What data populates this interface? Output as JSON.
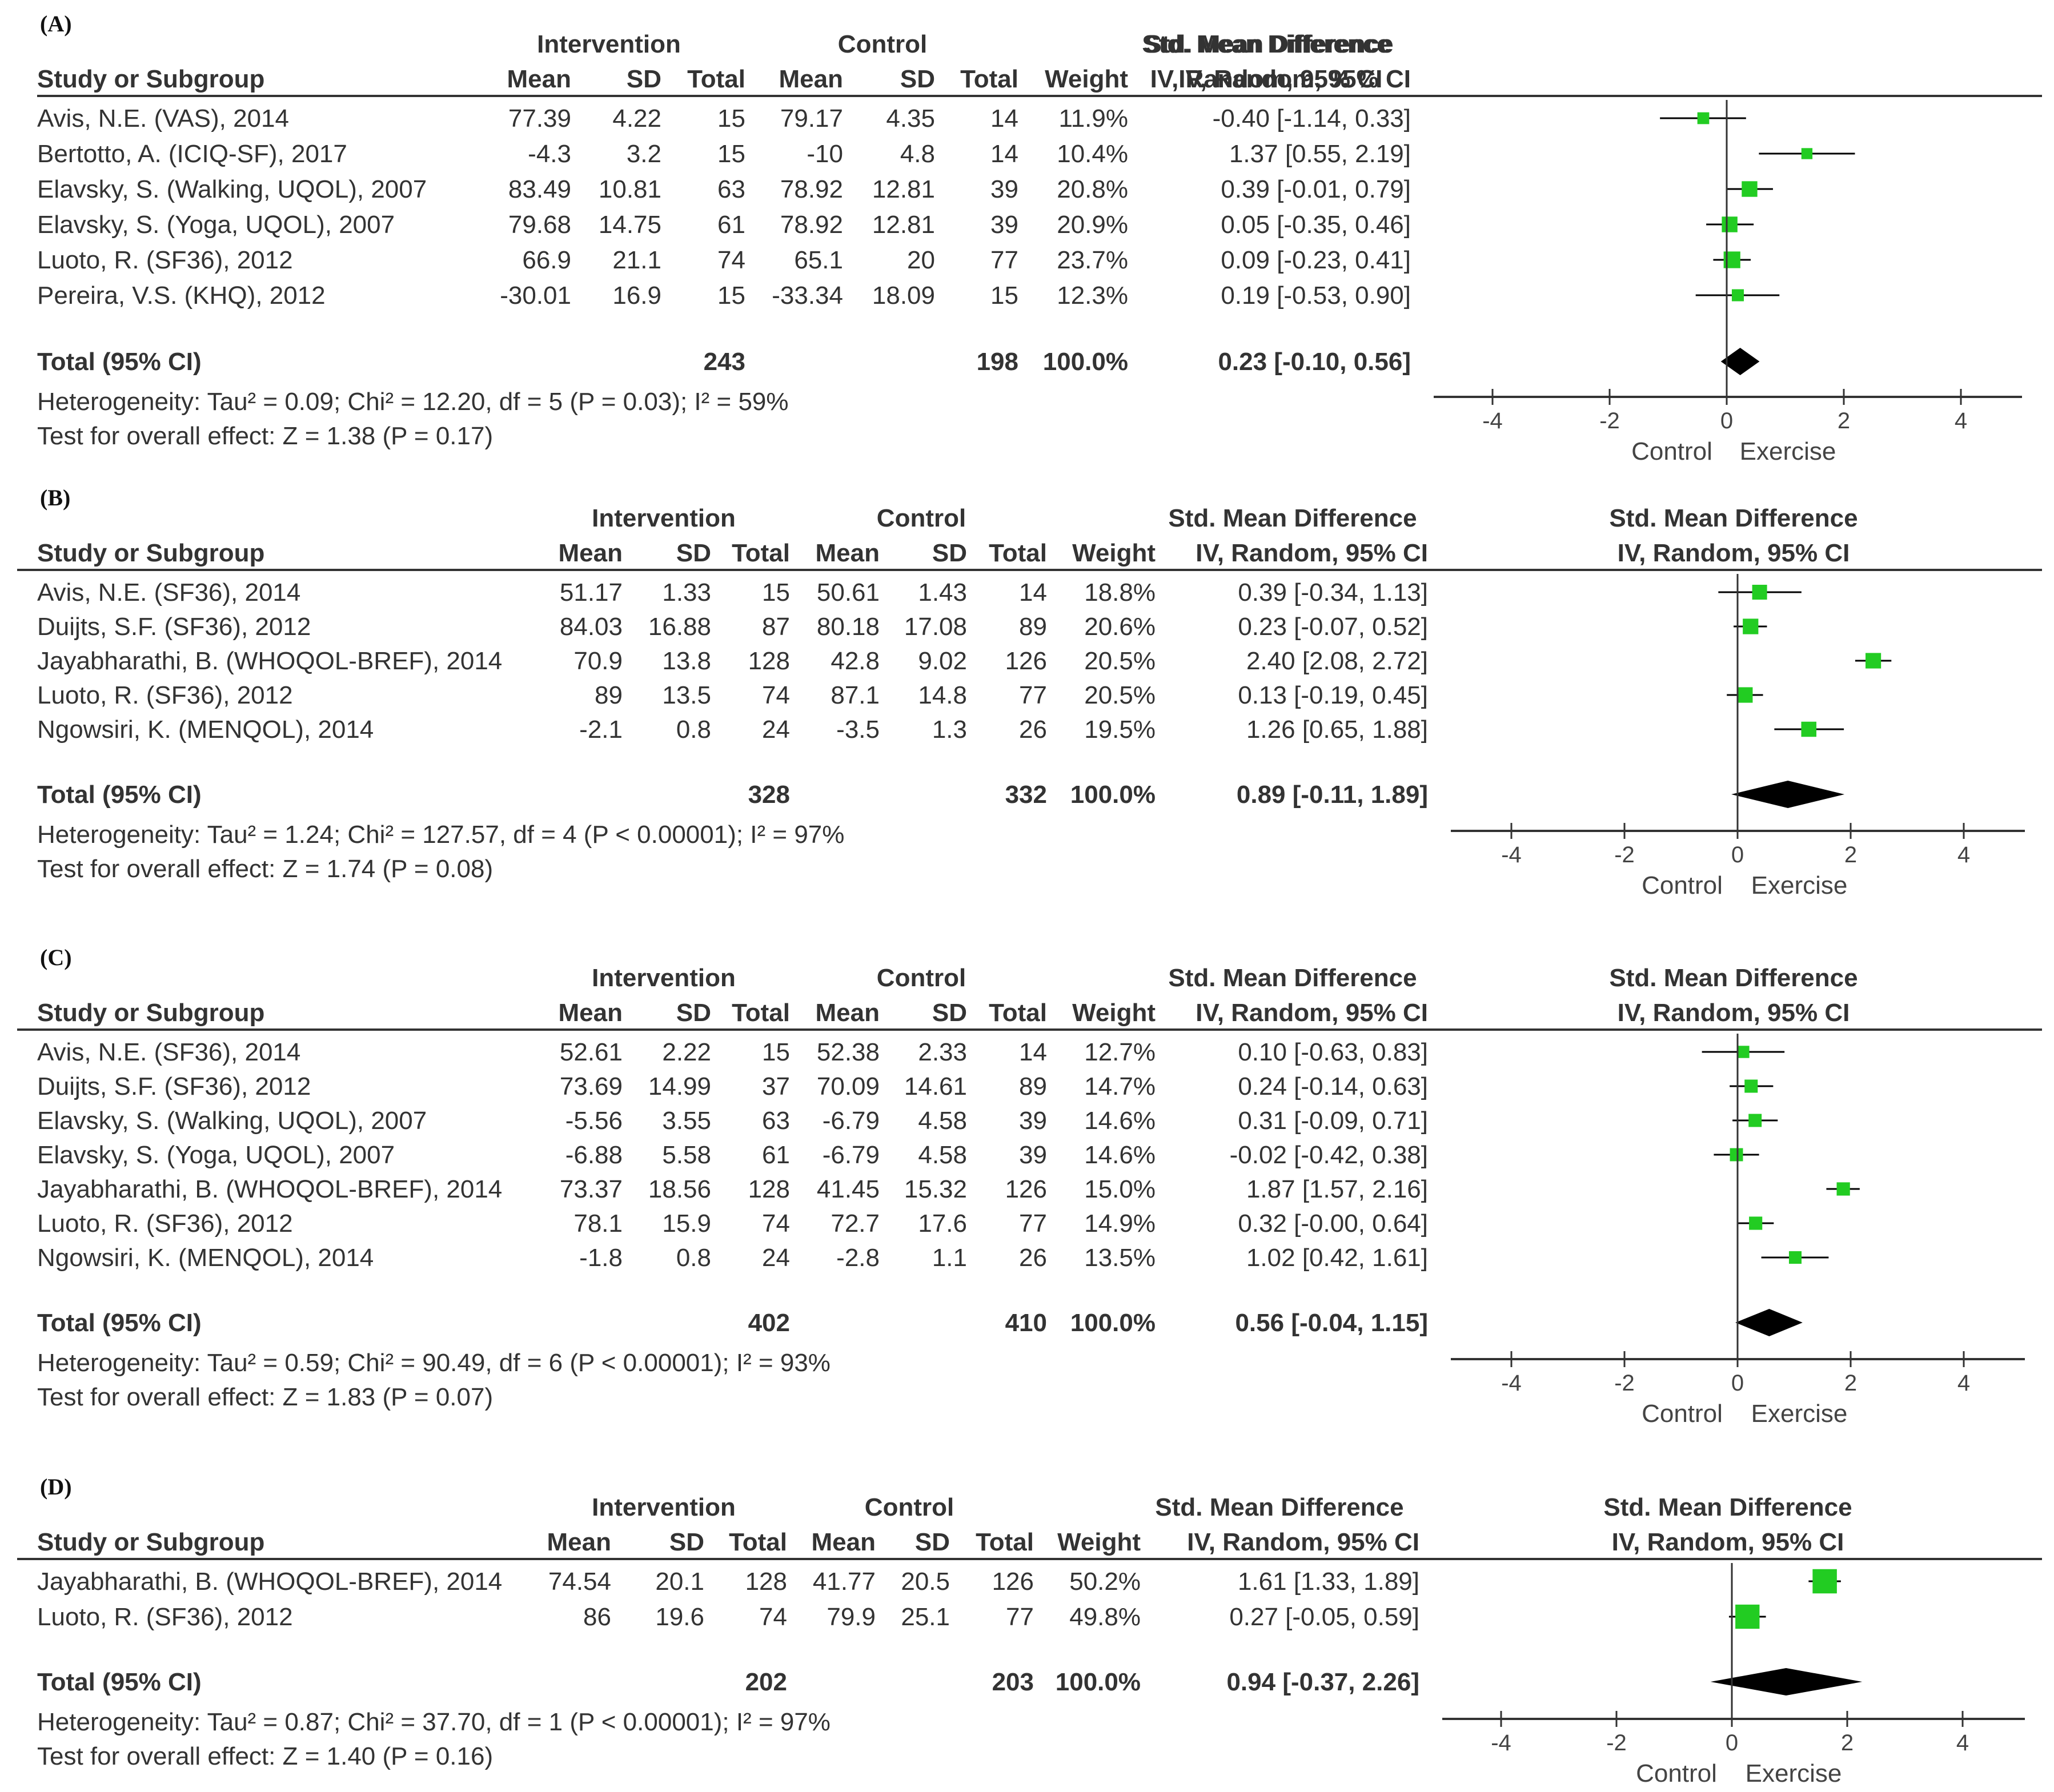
{
  "labels": {
    "study": "Study or Subgroup",
    "intervention": "Intervention",
    "control": "Control",
    "mean": "Mean",
    "sd": "SD",
    "total": "Total",
    "weight": "Weight",
    "smd": "Std. Mean Difference",
    "ivci": "IV, Random, 95% CI",
    "dir_left": "Control",
    "dir_right": "Exercise"
  },
  "colors": {
    "marker": "#22cc22",
    "diamond": "#000000",
    "line": "#000000"
  },
  "chart_data": [
    {
      "type": "forest",
      "panel": "(A)",
      "axis_ticks": [
        "-4",
        "-2",
        "0",
        "2",
        "4"
      ],
      "xlim": [
        -5,
        5
      ],
      "rows": [
        {
          "study": "Avis, N.E. (VAS), 2014",
          "i_mean": "77.39",
          "i_sd": "4.22",
          "i_total": "15",
          "c_mean": "79.17",
          "c_sd": "4.35",
          "c_total": "14",
          "weight": "11.9%",
          "ci_text": "-0.40 [-1.14, 0.33]",
          "est": -0.4,
          "lo": -1.14,
          "hi": 0.33,
          "w": 11.9
        },
        {
          "study": "Bertotto, A. (ICIQ-SF), 2017",
          "i_mean": "-4.3",
          "i_sd": "3.2",
          "i_total": "15",
          "c_mean": "-10",
          "c_sd": "4.8",
          "c_total": "14",
          "weight": "10.4%",
          "ci_text": "1.37 [0.55, 2.19]",
          "est": 1.37,
          "lo": 0.55,
          "hi": 2.19,
          "w": 10.4
        },
        {
          "study": "Elavsky, S. (Walking, UQOL), 2007",
          "i_mean": "83.49",
          "i_sd": "10.81",
          "i_total": "63",
          "c_mean": "78.92",
          "c_sd": "12.81",
          "c_total": "39",
          "weight": "20.8%",
          "ci_text": "0.39 [-0.01, 0.79]",
          "est": 0.39,
          "lo": -0.01,
          "hi": 0.79,
          "w": 20.8
        },
        {
          "study": "Elavsky, S. (Yoga, UQOL), 2007",
          "i_mean": "79.68",
          "i_sd": "14.75",
          "i_total": "61",
          "c_mean": "78.92",
          "c_sd": "12.81",
          "c_total": "39",
          "weight": "20.9%",
          "ci_text": "0.05 [-0.35, 0.46]",
          "est": 0.05,
          "lo": -0.35,
          "hi": 0.46,
          "w": 20.9
        },
        {
          "study": "Luoto, R. (SF36), 2012",
          "i_mean": "66.9",
          "i_sd": "21.1",
          "i_total": "74",
          "c_mean": "65.1",
          "c_sd": "20",
          "c_total": "77",
          "weight": "23.7%",
          "ci_text": "0.09 [-0.23, 0.41]",
          "est": 0.09,
          "lo": -0.23,
          "hi": 0.41,
          "w": 23.7
        },
        {
          "study": "Pereira, V.S. (KHQ), 2012",
          "i_mean": "-30.01",
          "i_sd": "16.9",
          "i_total": "15",
          "c_mean": "-33.34",
          "c_sd": "18.09",
          "c_total": "15",
          "weight": "12.3%",
          "ci_text": "0.19 [-0.53, 0.90]",
          "est": 0.19,
          "lo": -0.53,
          "hi": 0.9,
          "w": 12.3
        }
      ],
      "total": {
        "label": "Total (95% CI)",
        "i_total": "243",
        "c_total": "198",
        "weight": "100.0%",
        "ci_text": "0.23 [-0.10, 0.56]",
        "est": 0.23,
        "lo": -0.1,
        "hi": 0.56
      },
      "heterogeneity": "Heterogeneity: Tau² = 0.09; Chi² = 12.20, df = 5 (P = 0.03); I² = 59%",
      "overall": "Test for overall effect: Z = 1.38 (P = 0.17)"
    },
    {
      "type": "forest",
      "panel": "(B)",
      "axis_ticks": [
        "-4",
        "-2",
        "0",
        "2",
        "4"
      ],
      "xlim": [
        -5,
        5
      ],
      "rows": [
        {
          "study": "Avis, N.E. (SF36), 2014",
          "i_mean": "51.17",
          "i_sd": "1.33",
          "i_total": "15",
          "c_mean": "50.61",
          "c_sd": "1.43",
          "c_total": "14",
          "weight": "18.8%",
          "ci_text": "0.39 [-0.34, 1.13]",
          "est": 0.39,
          "lo": -0.34,
          "hi": 1.13,
          "w": 18.8
        },
        {
          "study": "Duijts, S.F. (SF36), 2012",
          "i_mean": "84.03",
          "i_sd": "16.88",
          "i_total": "87",
          "c_mean": "80.18",
          "c_sd": "17.08",
          "c_total": "89",
          "weight": "20.6%",
          "ci_text": "0.23 [-0.07, 0.52]",
          "est": 0.23,
          "lo": -0.07,
          "hi": 0.52,
          "w": 20.6
        },
        {
          "study": "Jayabharathi, B. (WHOQOL-BREF), 2014",
          "i_mean": "70.9",
          "i_sd": "13.8",
          "i_total": "128",
          "c_mean": "42.8",
          "c_sd": "9.02",
          "c_total": "126",
          "weight": "20.5%",
          "ci_text": "2.40 [2.08, 2.72]",
          "est": 2.4,
          "lo": 2.08,
          "hi": 2.72,
          "w": 20.5
        },
        {
          "study": "Luoto, R. (SF36), 2012",
          "i_mean": "89",
          "i_sd": "13.5",
          "i_total": "74",
          "c_mean": "87.1",
          "c_sd": "14.8",
          "c_total": "77",
          "weight": "20.5%",
          "ci_text": "0.13 [-0.19, 0.45]",
          "est": 0.13,
          "lo": -0.19,
          "hi": 0.45,
          "w": 20.5
        },
        {
          "study": "Ngowsiri, K. (MENQOL), 2014",
          "i_mean": "-2.1",
          "i_sd": "0.8",
          "i_total": "24",
          "c_mean": "-3.5",
          "c_sd": "1.3",
          "c_total": "26",
          "weight": "19.5%",
          "ci_text": "1.26 [0.65, 1.88]",
          "est": 1.26,
          "lo": 0.65,
          "hi": 1.88,
          "w": 19.5
        }
      ],
      "total": {
        "label": "Total (95% CI)",
        "i_total": "328",
        "c_total": "332",
        "weight": "100.0%",
        "ci_text": "0.89 [-0.11, 1.89]",
        "est": 0.89,
        "lo": -0.11,
        "hi": 1.89
      },
      "heterogeneity": "Heterogeneity: Tau² = 1.24; Chi² = 127.57, df = 4 (P < 0.00001); I² = 97%",
      "overall": "Test for overall effect: Z = 1.74 (P = 0.08)"
    },
    {
      "type": "forest",
      "panel": "(C)",
      "axis_ticks": [
        "-4",
        "-2",
        "0",
        "2",
        "4"
      ],
      "xlim": [
        -5,
        5
      ],
      "rows": [
        {
          "study": "Avis, N.E. (SF36), 2014",
          "i_mean": "52.61",
          "i_sd": "2.22",
          "i_total": "15",
          "c_mean": "52.38",
          "c_sd": "2.33",
          "c_total": "14",
          "weight": "12.7%",
          "ci_text": "0.10 [-0.63, 0.83]",
          "est": 0.1,
          "lo": -0.63,
          "hi": 0.83,
          "w": 12.7
        },
        {
          "study": "Duijts, S.F. (SF36), 2012",
          "i_mean": "73.69",
          "i_sd": "14.99",
          "i_total": "37",
          "c_mean": "70.09",
          "c_sd": "14.61",
          "c_total": "89",
          "weight": "14.7%",
          "ci_text": "0.24 [-0.14, 0.63]",
          "est": 0.24,
          "lo": -0.14,
          "hi": 0.63,
          "w": 14.7
        },
        {
          "study": "Elavsky, S. (Walking, UQOL), 2007",
          "i_mean": "-5.56",
          "i_sd": "3.55",
          "i_total": "63",
          "c_mean": "-6.79",
          "c_sd": "4.58",
          "c_total": "39",
          "weight": "14.6%",
          "ci_text": "0.31 [-0.09, 0.71]",
          "est": 0.31,
          "lo": -0.09,
          "hi": 0.71,
          "w": 14.6
        },
        {
          "study": "Elavsky, S. (Yoga, UQOL), 2007",
          "i_mean": "-6.88",
          "i_sd": "5.58",
          "i_total": "61",
          "c_mean": "-6.79",
          "c_sd": "4.58",
          "c_total": "39",
          "weight": "14.6%",
          "ci_text": "-0.02 [-0.42, 0.38]",
          "est": -0.02,
          "lo": -0.42,
          "hi": 0.38,
          "w": 14.6
        },
        {
          "study": "Jayabharathi, B. (WHOQOL-BREF), 2014",
          "i_mean": "73.37",
          "i_sd": "18.56",
          "i_total": "128",
          "c_mean": "41.45",
          "c_sd": "15.32",
          "c_total": "126",
          "weight": "15.0%",
          "ci_text": "1.87 [1.57, 2.16]",
          "est": 1.87,
          "lo": 1.57,
          "hi": 2.16,
          "w": 15.0
        },
        {
          "study": "Luoto, R. (SF36), 2012",
          "i_mean": "78.1",
          "i_sd": "15.9",
          "i_total": "74",
          "c_mean": "72.7",
          "c_sd": "17.6",
          "c_total": "77",
          "weight": "14.9%",
          "ci_text": "0.32 [-0.00, 0.64]",
          "est": 0.32,
          "lo": 0.0,
          "hi": 0.64,
          "w": 14.9
        },
        {
          "study": "Ngowsiri, K. (MENQOL), 2014",
          "i_mean": "-1.8",
          "i_sd": "0.8",
          "i_total": "24",
          "c_mean": "-2.8",
          "c_sd": "1.1",
          "c_total": "26",
          "weight": "13.5%",
          "ci_text": "1.02 [0.42, 1.61]",
          "est": 1.02,
          "lo": 0.42,
          "hi": 1.61,
          "w": 13.5
        }
      ],
      "total": {
        "label": "Total (95% CI)",
        "i_total": "402",
        "c_total": "410",
        "weight": "100.0%",
        "ci_text": "0.56 [-0.04, 1.15]",
        "est": 0.56,
        "lo": -0.04,
        "hi": 1.15
      },
      "heterogeneity": "Heterogeneity: Tau² = 0.59; Chi² = 90.49, df = 6 (P < 0.00001); I² = 93%",
      "overall": "Test for overall effect: Z = 1.83 (P = 0.07)"
    },
    {
      "type": "forest",
      "panel": "(D)",
      "axis_ticks": [
        "-4",
        "-2",
        "0",
        "2",
        "4"
      ],
      "xlim": [
        -5,
        5
      ],
      "rows": [
        {
          "study": "Jayabharathi, B. (WHOQOL-BREF), 2014",
          "i_mean": "74.54",
          "i_sd": "20.1",
          "i_total": "128",
          "c_mean": "41.77",
          "c_sd": "20.5",
          "c_total": "126",
          "weight": "50.2%",
          "ci_text": "1.61 [1.33, 1.89]",
          "est": 1.61,
          "lo": 1.33,
          "hi": 1.89,
          "w": 50.2
        },
        {
          "study": "Luoto, R. (SF36), 2012",
          "i_mean": "86",
          "i_sd": "19.6",
          "i_total": "74",
          "c_mean": "79.9",
          "c_sd": "25.1",
          "c_total": "77",
          "weight": "49.8%",
          "ci_text": "0.27 [-0.05, 0.59]",
          "est": 0.27,
          "lo": -0.05,
          "hi": 0.59,
          "w": 49.8
        }
      ],
      "total": {
        "label": "Total (95% CI)",
        "i_total": "202",
        "c_total": "203",
        "weight": "100.0%",
        "ci_text": "0.94 [-0.37, 2.26]",
        "est": 0.94,
        "lo": -0.37,
        "hi": 2.26
      },
      "heterogeneity": "Heterogeneity: Tau² = 0.87; Chi² = 37.70, df = 1 (P < 0.00001); I² = 97%",
      "overall": "Test for overall effect: Z = 1.40 (P = 0.16)"
    }
  ]
}
